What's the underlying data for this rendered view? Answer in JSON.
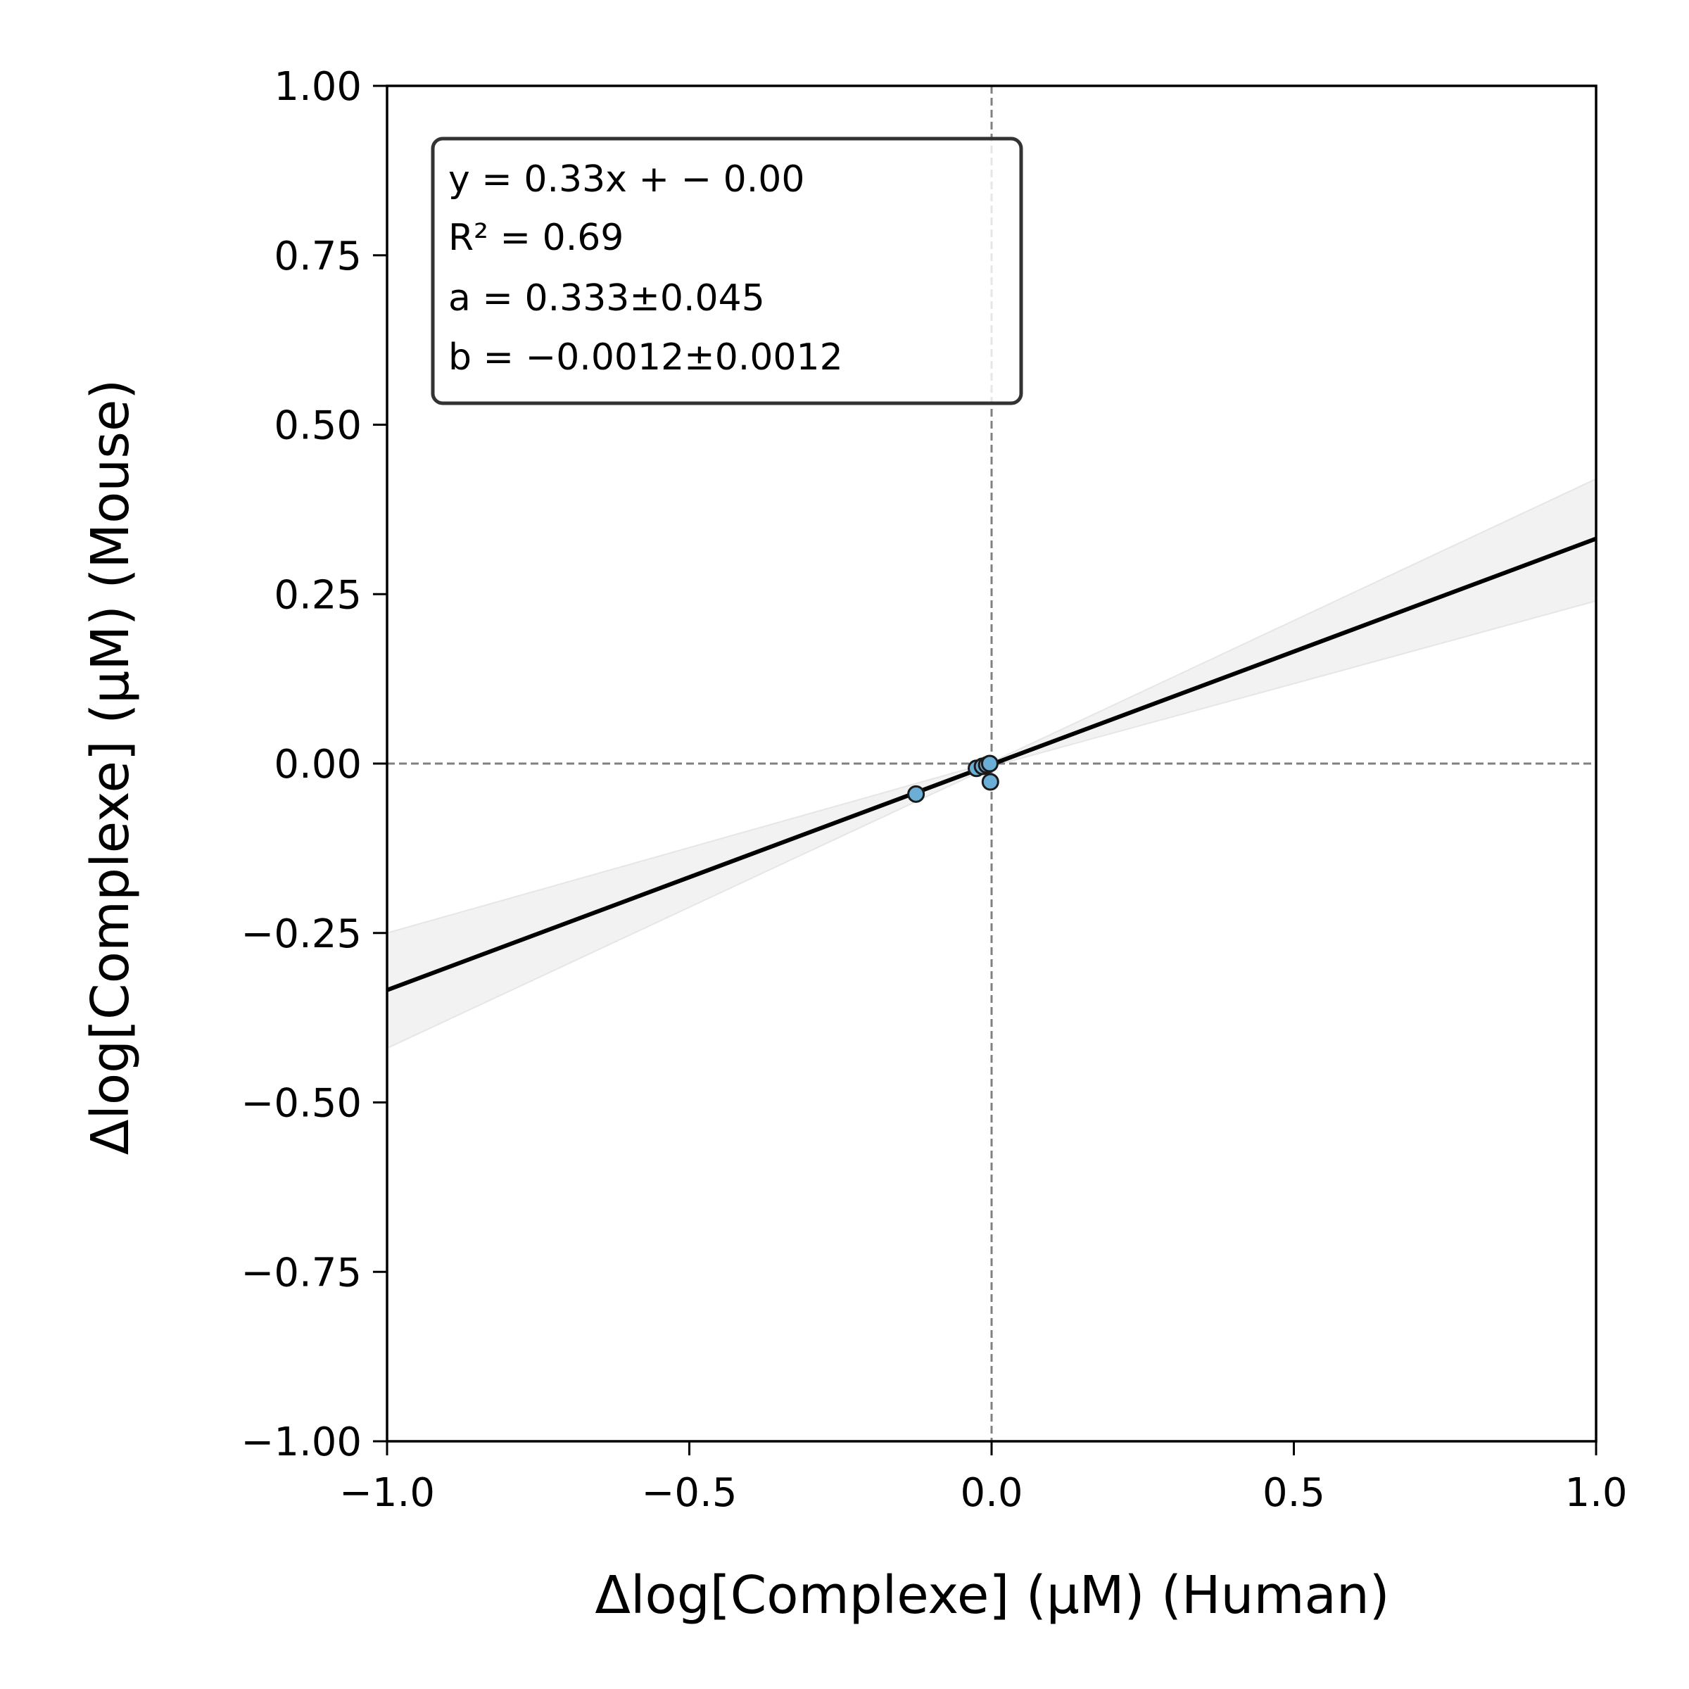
{
  "chart_data": {
    "type": "scatter",
    "xlabel": "Δlog[Complexe] (µM) (Human)",
    "ylabel": "Δlog[Complexe] (µM) (Mouse)",
    "xlim": [
      -1.0,
      1.0
    ],
    "ylim": [
      -1.0,
      1.0
    ],
    "x_ticks": [
      "−1.0",
      "−0.5",
      "0.0",
      "0.5",
      "1.0"
    ],
    "x_tick_values": [
      -1.0,
      -0.5,
      0.0,
      0.5,
      1.0
    ],
    "y_ticks": [
      "−1.00",
      "−0.75",
      "−0.50",
      "−0.25",
      "0.00",
      "0.25",
      "0.50",
      "0.75",
      "1.00"
    ],
    "y_tick_values": [
      -1.0,
      -0.75,
      -0.5,
      -0.25,
      0.0,
      0.25,
      0.5,
      0.75,
      1.0
    ],
    "grid": false,
    "reference_lines": {
      "x": 0.0,
      "y": 0.0,
      "style": "dashed",
      "color": "#808080"
    },
    "points": [
      {
        "x": -0.125,
        "y": -0.045
      },
      {
        "x": -0.025,
        "y": -0.007
      },
      {
        "x": -0.015,
        "y": -0.004
      },
      {
        "x": -0.008,
        "y": -0.002
      },
      {
        "x": -0.003,
        "y": 0.0
      },
      {
        "x": -0.002,
        "y": -0.027
      }
    ],
    "point_color": "#6baed6",
    "fit_line": {
      "slope": 0.333,
      "intercept": -0.0012,
      "color": "#000000"
    },
    "confidence_band": {
      "x": [
        -1.0,
        0.0,
        1.0
      ],
      "lower": [
        -0.42,
        -0.004,
        0.24
      ],
      "upper": [
        -0.25,
        0.002,
        0.42
      ],
      "color": "#f2f2f2"
    },
    "annotation": {
      "placement": "top-left",
      "lines": [
        "y = 0.33x + − 0.00",
        "R² = 0.69",
        "a = 0.333±0.045",
        "b = −0.0012±0.0012"
      ]
    }
  }
}
